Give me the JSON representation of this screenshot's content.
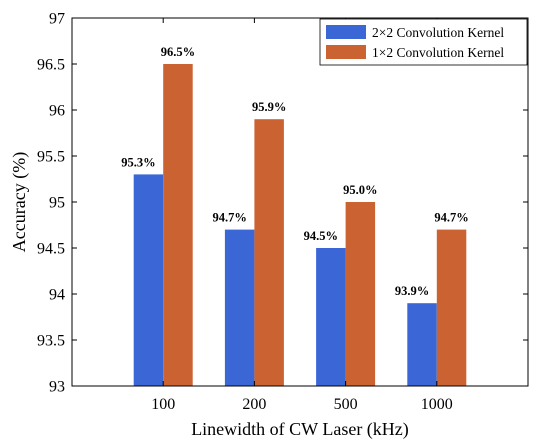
{
  "chart_data": {
    "type": "bar",
    "title": "",
    "xlabel": "Linewidth of CW Laser (kHz)",
    "ylabel": "Accuracy (%)",
    "categories": [
      "100",
      "200",
      "500",
      "1000"
    ],
    "ylim": [
      93,
      97
    ],
    "yticks": [
      "93",
      "93.5",
      "94",
      "94.5",
      "95",
      "95.5",
      "96",
      "96.5",
      "97"
    ],
    "grid": false,
    "legend_position": "top-right",
    "series": [
      {
        "name": "2×2 Convolution Kernel",
        "color": "#3a66d6",
        "values": [
          95.3,
          94.7,
          94.5,
          93.9
        ],
        "labels": [
          "95.3%",
          "94.7%",
          "94.5%",
          "93.9%"
        ]
      },
      {
        "name": "1×2 Convolution Kernel",
        "color": "#cb6232",
        "values": [
          96.5,
          95.9,
          95.0,
          94.7
        ],
        "labels": [
          "96.5%",
          "95.9%",
          "95.0%",
          "94.7%"
        ]
      }
    ]
  }
}
